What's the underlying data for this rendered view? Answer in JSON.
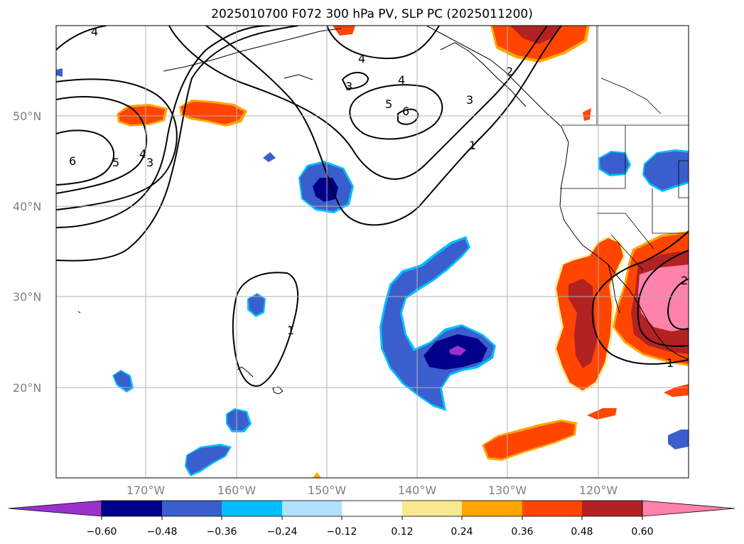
{
  "title": "2025010700 F072 300 hPa PV, SLP PC (2025011200)",
  "map": {
    "lat_labels": [
      "50°N",
      "40°N",
      "30°N",
      "20°N"
    ],
    "lon_labels": [
      "170°W",
      "160°W",
      "150°W",
      "140°W",
      "130°W",
      "120°W"
    ],
    "grid_color": "#b0b0b0"
  },
  "colorbar": {
    "ticks": [
      "−0.60",
      "−0.48",
      "−0.36",
      "−0.24",
      "−0.12",
      "0.12",
      "0.24",
      "0.36",
      "0.48",
      "0.60"
    ],
    "colors": [
      "#9932cc",
      "#00008b",
      "#3a5fcd",
      "#00bfff",
      "#b0e2ff",
      "#ffffff",
      "#fbe98f",
      "#ffa500",
      "#ff4500",
      "#b22222",
      "#ff82ab"
    ],
    "extend": "both"
  },
  "contour_labels": [
    "4",
    "6",
    "5",
    "4",
    "3",
    "3",
    "4",
    "4",
    "5",
    "6",
    "3",
    "1",
    "2",
    "1",
    "1",
    "2"
  ]
}
